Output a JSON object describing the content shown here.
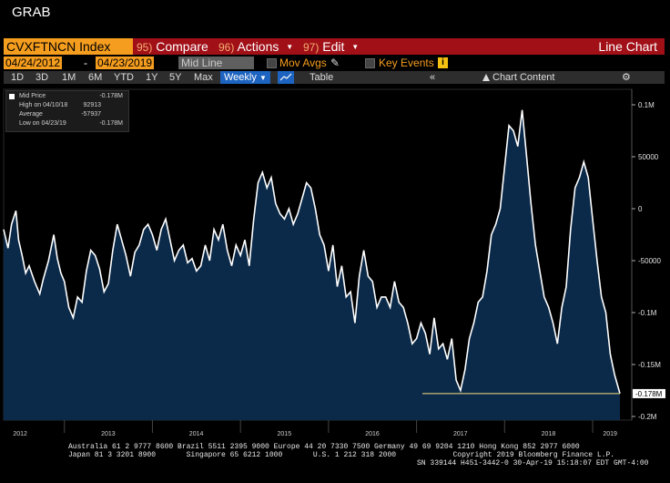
{
  "window_title": "GRAB",
  "command_bar": {
    "ticker": "CVXFTNCN Index",
    "compare": {
      "num": "95)",
      "label": "Compare"
    },
    "actions": {
      "num": "96)",
      "label": "Actions"
    },
    "edit": {
      "num": "97)",
      "label": "Edit"
    },
    "chart_type": "Line Chart"
  },
  "controls": {
    "start_date": "04/24/2012",
    "end_date": "04/23/2019",
    "field_select": "Mid Line",
    "mov_avgs": "Mov Avgs",
    "key_events": "Key Events"
  },
  "range_bar": {
    "ranges": [
      "1D",
      "3D",
      "1M",
      "6M",
      "YTD",
      "1Y",
      "5Y",
      "Max"
    ],
    "frequency": "Weekly",
    "table": "Table",
    "chart_content": "Chart Content"
  },
  "legend": {
    "mid_price_label": "Mid Price",
    "mid_price_value": "-0.178M",
    "high_label": "High on 04/10/18",
    "high_value": "92913",
    "average_label": "Average",
    "average_value": "-57937",
    "low_label": "Low on 04/23/19",
    "low_value": "-0.178M"
  },
  "chart_data": {
    "type": "area",
    "ylim": [
      -200000,
      100000
    ],
    "y_tick_labels": [
      "0.1M",
      "50000",
      "0",
      "-50000",
      "-0.1M",
      "-0.15M",
      "-0.2M"
    ],
    "y_tick_values": [
      100000,
      50000,
      0,
      -50000,
      -100000,
      -150000,
      -200000
    ],
    "last_value_label": "-0.178M",
    "last_value": -178000,
    "x_tick_labels": [
      "2012",
      "2013",
      "2014",
      "2015",
      "2016",
      "2017",
      "2018",
      "2019"
    ],
    "x_tick_values": [
      2012.5,
      2013.5,
      2014.5,
      2015.5,
      2016.5,
      2017.5,
      2018.5,
      2019.2
    ],
    "xlim": [
      2012.31,
      2019.31
    ],
    "colors": {
      "line": "#ffffff",
      "fill": "#0b2a4a",
      "last_line": "#f5e27a",
      "label_bg": "#ffffff"
    },
    "series": [
      {
        "x": [
          2012.31,
          2012.36,
          2012.4,
          2012.45,
          2012.48,
          2012.52,
          2012.56,
          2012.6,
          2012.66,
          2012.72,
          2012.76,
          2012.82,
          2012.88,
          2012.92,
          2012.96,
          2013.0,
          2013.05,
          2013.1,
          2013.15,
          2013.2,
          2013.25,
          2013.3,
          2013.35,
          2013.4,
          2013.45,
          2013.5,
          2013.55,
          2013.6,
          2013.65,
          2013.7,
          2013.75,
          2013.8,
          2013.85,
          2013.9,
          2013.95,
          2014.0,
          2014.05,
          2014.1,
          2014.15,
          2014.2,
          2014.25,
          2014.3,
          2014.35,
          2014.4,
          2014.45,
          2014.5,
          2014.55,
          2014.6,
          2014.65,
          2014.7,
          2014.75,
          2014.8,
          2014.85,
          2014.9,
          2014.95,
          2015.0,
          2015.05,
          2015.1,
          2015.15,
          2015.2,
          2015.25,
          2015.3,
          2015.35,
          2015.4,
          2015.45,
          2015.5,
          2015.55,
          2015.6,
          2015.65,
          2015.7,
          2015.75,
          2015.8,
          2015.85,
          2015.9,
          2015.95,
          2016.0,
          2016.05,
          2016.1,
          2016.15,
          2016.2,
          2016.25,
          2016.3,
          2016.35,
          2016.4,
          2016.45,
          2016.5,
          2016.55,
          2016.6,
          2016.65,
          2016.7,
          2016.75,
          2016.8,
          2016.85,
          2016.9,
          2016.95,
          2017.0,
          2017.05,
          2017.1,
          2017.15,
          2017.2,
          2017.25,
          2017.3,
          2017.35,
          2017.4,
          2017.45,
          2017.5,
          2017.55,
          2017.6,
          2017.65,
          2017.7,
          2017.75,
          2017.8,
          2017.85,
          2017.9,
          2017.95,
          2018.0,
          2018.05,
          2018.1,
          2018.15,
          2018.2,
          2018.25,
          2018.3,
          2018.35,
          2018.4,
          2018.45,
          2018.5,
          2018.55,
          2018.6,
          2018.65,
          2018.7,
          2018.75,
          2018.8,
          2018.85,
          2018.9,
          2018.95,
          2019.0,
          2019.05,
          2019.1,
          2019.15,
          2019.2,
          2019.25,
          2019.31
        ],
        "values": [
          -20000,
          -38000,
          -15000,
          -2000,
          -30000,
          -45000,
          -62000,
          -55000,
          -70000,
          -82000,
          -68000,
          -50000,
          -25000,
          -48000,
          -62000,
          -70000,
          -95000,
          -105000,
          -85000,
          -90000,
          -60000,
          -40000,
          -45000,
          -58000,
          -80000,
          -72000,
          -40000,
          -15000,
          -30000,
          -45000,
          -65000,
          -42000,
          -35000,
          -20000,
          -15000,
          -25000,
          -40000,
          -20000,
          -10000,
          -30000,
          -50000,
          -40000,
          -35000,
          -52000,
          -48000,
          -60000,
          -55000,
          -35000,
          -50000,
          -20000,
          -30000,
          -15000,
          -40000,
          -55000,
          -35000,
          -45000,
          -30000,
          -55000,
          -10000,
          25000,
          35000,
          20000,
          30000,
          5000,
          -5000,
          -10000,
          0,
          -15000,
          -5000,
          10000,
          25000,
          20000,
          0,
          -25000,
          -35000,
          -60000,
          -35000,
          -75000,
          -55000,
          -85000,
          -80000,
          -110000,
          -65000,
          -40000,
          -65000,
          -70000,
          -95000,
          -85000,
          -85000,
          -95000,
          -70000,
          -90000,
          -95000,
          -110000,
          -130000,
          -125000,
          -110000,
          -120000,
          -140000,
          -105000,
          -135000,
          -130000,
          -145000,
          -125000,
          -165000,
          -175000,
          -155000,
          -125000,
          -110000,
          -90000,
          -85000,
          -60000,
          -25000,
          -15000,
          0,
          40000,
          80000,
          75000,
          60000,
          95000,
          50000,
          5000,
          -35000,
          -60000,
          -85000,
          -95000,
          -110000,
          -130000,
          -95000,
          -75000,
          -20000,
          20000,
          30000,
          45000,
          30000,
          -10000,
          -50000,
          -85000,
          -100000,
          -140000,
          -160000,
          -178000
        ]
      }
    ]
  },
  "footer": {
    "line1": "Australia 61 2 9777 8600 Brazil 5511 2395 9000 Europe 44 20 7330 7500 Germany 49 69 9204 1210 Hong Kong 852 2977 6000",
    "line2": "Japan 81 3 3201 8900       Singapore 65 6212 1000       U.S. 1 212 318 2000             Copyright 2019 Bloomberg Finance L.P.",
    "line3": "SN 339144 H451-3442-0 30-Apr-19 15:18:07 EDT  GMT-4:00"
  }
}
